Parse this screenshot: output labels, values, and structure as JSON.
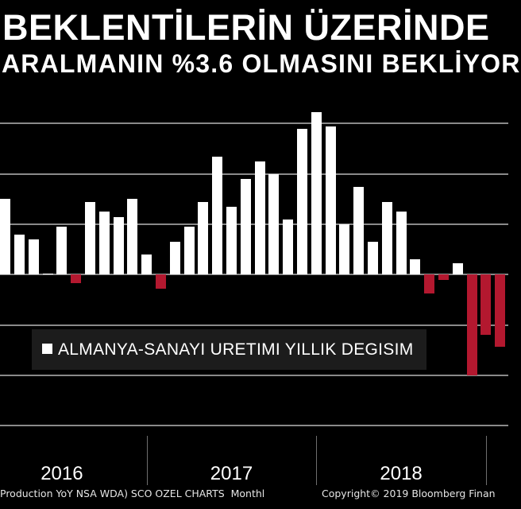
{
  "chart_data": {
    "type": "bar",
    "title": [
      "BEKLENTİLERİN ÜZERİNDE",
      "ARALMANIN %3.6 OLMASINI BEKLİYOR"
    ],
    "xlabel": "",
    "ylabel": "",
    "x": [
      "2016-02",
      "2016-03",
      "2016-04",
      "2016-05",
      "2016-06",
      "2016-07",
      "2016-08",
      "2016-09",
      "2016-10",
      "2016-11",
      "2016-12",
      "2017-01",
      "2017-02",
      "2017-03",
      "2017-04",
      "2017-05",
      "2017-06",
      "2017-07",
      "2017-08",
      "2017-09",
      "2017-10",
      "2017-11",
      "2017-12",
      "2018-01",
      "2018-02",
      "2018-03",
      "2018-04",
      "2018-05",
      "2018-06",
      "2018-07",
      "2018-08",
      "2018-09",
      "2018-10",
      "2018-11",
      "2018-12",
      "2019-01"
    ],
    "series": [
      {
        "name": "ALMANYA-SANAYI URETIMI YILLIK DEGISIM",
        "values": [
          3.0,
          1.6,
          1.4,
          0.05,
          1.9,
          -0.35,
          2.9,
          2.5,
          2.3,
          3.0,
          0.8,
          -0.55,
          1.3,
          1.9,
          2.9,
          4.7,
          2.7,
          3.8,
          4.5,
          4.0,
          2.2,
          5.8,
          6.45,
          5.9,
          2.0,
          3.5,
          1.3,
          2.9,
          2.5,
          0.6,
          -0.75,
          -0.2,
          0.45,
          -4.0,
          -2.4,
          -2.85
        ]
      }
    ],
    "x_tick_labels": [
      "2016",
      "2017",
      "2018"
    ],
    "ylim": [
      -6.4,
      8
    ],
    "grid": true,
    "grid_step": 2,
    "legend_position": "lower-left",
    "colors": {
      "background": "#000000",
      "positive": "#ffffff",
      "negative": "#b3182f",
      "grid": "#8a8a8a",
      "legend_background": "#1c1c1c"
    }
  },
  "footer": {
    "source": "Production YoY NSA WDA) SCO OZEL CHARTS  Monthl",
    "copyright": "Copyright© 2019 Bloomberg Finan"
  }
}
